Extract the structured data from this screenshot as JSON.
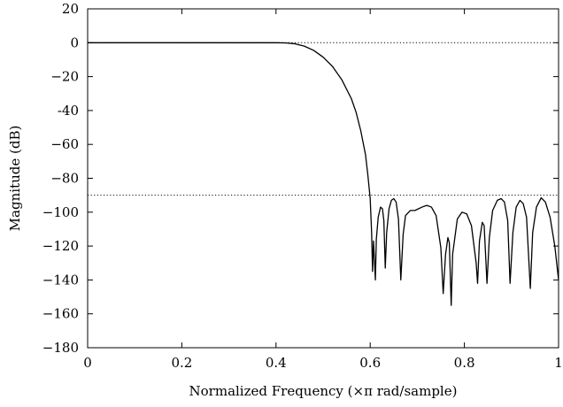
{
  "chart_data": {
    "type": "line",
    "title": "",
    "xlabel": "Normalized Frequency (×π rad/sample)",
    "ylabel": "Magnitude (dB)",
    "xlim": [
      0,
      1
    ],
    "ylim": [
      -180,
      20
    ],
    "x_ticks": [
      0,
      0.2,
      0.4,
      0.6,
      0.8,
      1
    ],
    "x_tick_labels": [
      "0",
      "0.2",
      "0.4",
      "0.6",
      "0.8",
      "1"
    ],
    "y_ticks": [
      20,
      0,
      -20,
      -40,
      -60,
      -80,
      -100,
      -120,
      -140,
      -160,
      -180
    ],
    "y_tick_labels": [
      "20",
      "0",
      "−20",
      "-40",
      "−60",
      "−80",
      "−100",
      "−120",
      "−140",
      "−160",
      "−180"
    ],
    "grid": false,
    "legend": "none",
    "reference_lines": [
      {
        "y": 0,
        "style": "dotted"
      },
      {
        "y": -90,
        "style": "dotted"
      }
    ],
    "series": [
      {
        "points": [
          [
            0.0,
            0
          ],
          [
            0.1,
            0
          ],
          [
            0.2,
            0
          ],
          [
            0.3,
            0
          ],
          [
            0.4,
            0
          ],
          [
            0.42,
            -0.1
          ],
          [
            0.44,
            -0.6
          ],
          [
            0.46,
            -2
          ],
          [
            0.48,
            -4.5
          ],
          [
            0.5,
            -8.5
          ],
          [
            0.52,
            -14
          ],
          [
            0.54,
            -22
          ],
          [
            0.56,
            -33
          ],
          [
            0.57,
            -41
          ],
          [
            0.58,
            -52
          ],
          [
            0.59,
            -66
          ],
          [
            0.595,
            -78
          ],
          [
            0.6,
            -92
          ],
          [
            0.603,
            -112
          ],
          [
            0.605,
            -135
          ],
          [
            0.607,
            -117
          ],
          [
            0.609,
            -128
          ],
          [
            0.611,
            -140
          ],
          [
            0.613,
            -116
          ],
          [
            0.617,
            -103
          ],
          [
            0.622,
            -97
          ],
          [
            0.626,
            -98
          ],
          [
            0.629,
            -105
          ],
          [
            0.632,
            -133
          ],
          [
            0.635,
            -112
          ],
          [
            0.64,
            -98
          ],
          [
            0.645,
            -93
          ],
          [
            0.65,
            -92
          ],
          [
            0.655,
            -94
          ],
          [
            0.66,
            -104
          ],
          [
            0.665,
            -140
          ],
          [
            0.67,
            -113
          ],
          [
            0.675,
            -102
          ],
          [
            0.685,
            -99
          ],
          [
            0.695,
            -99
          ],
          [
            0.71,
            -97
          ],
          [
            0.72,
            -96
          ],
          [
            0.73,
            -97
          ],
          [
            0.74,
            -102
          ],
          [
            0.75,
            -121
          ],
          [
            0.755,
            -148
          ],
          [
            0.76,
            -125
          ],
          [
            0.765,
            -115
          ],
          [
            0.768,
            -118
          ],
          [
            0.772,
            -155
          ],
          [
            0.775,
            -125
          ],
          [
            0.785,
            -104
          ],
          [
            0.795,
            -100
          ],
          [
            0.805,
            -101
          ],
          [
            0.815,
            -108
          ],
          [
            0.825,
            -130
          ],
          [
            0.828,
            -142
          ],
          [
            0.832,
            -117
          ],
          [
            0.838,
            -106
          ],
          [
            0.842,
            -108
          ],
          [
            0.848,
            -142
          ],
          [
            0.853,
            -115
          ],
          [
            0.86,
            -99
          ],
          [
            0.87,
            -93
          ],
          [
            0.878,
            -92
          ],
          [
            0.885,
            -94
          ],
          [
            0.892,
            -105
          ],
          [
            0.897,
            -142
          ],
          [
            0.903,
            -112
          ],
          [
            0.91,
            -97
          ],
          [
            0.918,
            -93
          ],
          [
            0.925,
            -95
          ],
          [
            0.932,
            -103
          ],
          [
            0.94,
            -145
          ],
          [
            0.945,
            -112
          ],
          [
            0.953,
            -97
          ],
          [
            0.963,
            -91.5
          ],
          [
            0.972,
            -94
          ],
          [
            0.982,
            -103
          ],
          [
            0.992,
            -120
          ],
          [
            1.0,
            -140
          ]
        ]
      }
    ]
  }
}
